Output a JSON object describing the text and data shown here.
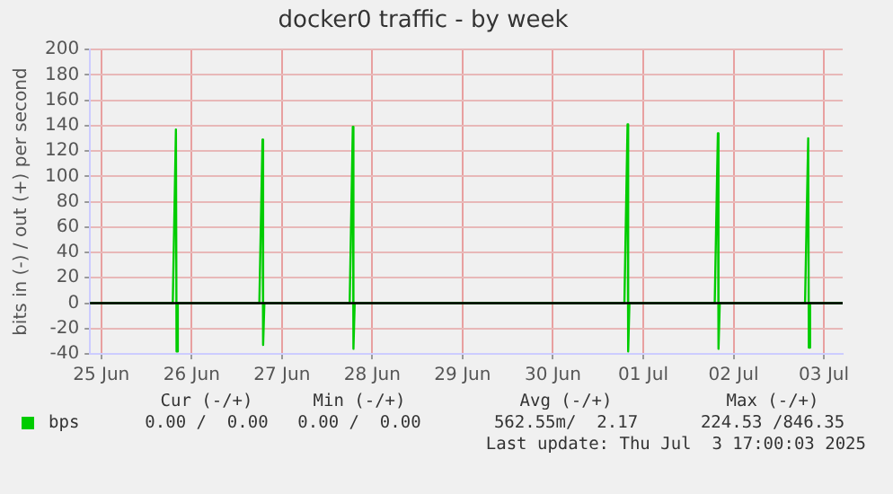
{
  "chart_data": {
    "type": "line",
    "title": "docker0 traffic - by week",
    "ylabel": "bits in (-) / out (+) per second",
    "x": [
      "2025-06-24T21:00",
      "2025-06-25T19:00",
      "2025-06-25T19:50",
      "2025-06-25T20:00",
      "2025-06-25T20:20",
      "2025-06-25T21:00",
      "2025-06-26T18:00",
      "2025-06-26T18:50",
      "2025-06-26T19:00",
      "2025-06-26T19:20",
      "2025-06-26T20:00",
      "2025-06-27T18:00",
      "2025-06-27T18:50",
      "2025-06-27T19:00",
      "2025-06-27T19:20",
      "2025-06-27T20:00",
      "2025-06-30T19:00",
      "2025-06-30T19:50",
      "2025-06-30T20:00",
      "2025-06-30T20:20",
      "2025-06-30T21:00",
      "2025-07-01T19:00",
      "2025-07-01T19:50",
      "2025-07-01T20:00",
      "2025-07-01T20:20",
      "2025-07-01T21:00",
      "2025-07-02T19:00",
      "2025-07-02T19:50",
      "2025-07-02T20:00",
      "2025-07-02T20:20",
      "2025-07-02T21:00",
      "2025-07-03T05:00"
    ],
    "series": [
      {
        "name": "bps",
        "color": "#00cc00",
        "values": [
          0,
          0,
          137,
          -38,
          0,
          0,
          0,
          129,
          -33,
          0,
          0,
          0,
          139,
          -36,
          0,
          0,
          0,
          141,
          -38,
          0,
          0,
          0,
          134,
          -36,
          0,
          0,
          0,
          130,
          -35,
          0,
          0,
          0
        ]
      }
    ],
    "xlim": [
      "2025-06-24T21:00",
      "2025-07-03T05:00"
    ],
    "xticks": [
      {
        "value": "2025-06-25",
        "label": "25 Jun"
      },
      {
        "value": "2025-06-26",
        "label": "26 Jun"
      },
      {
        "value": "2025-06-27",
        "label": "27 Jun"
      },
      {
        "value": "2025-06-28",
        "label": "28 Jun"
      },
      {
        "value": "2025-06-29",
        "label": "29 Jun"
      },
      {
        "value": "2025-06-30",
        "label": "30 Jun"
      },
      {
        "value": "2025-07-01",
        "label": "01 Jul"
      },
      {
        "value": "2025-07-02",
        "label": "02 Jul"
      },
      {
        "value": "2025-07-03",
        "label": "03 Jul"
      }
    ],
    "ylim": [
      -40,
      200
    ],
    "yticks": [
      -40,
      -20,
      0,
      20,
      40,
      60,
      80,
      100,
      120,
      140,
      160,
      180,
      200
    ],
    "grid": true,
    "legend": "bottom",
    "marker": "none",
    "line_style": "solid",
    "ref_lines": [
      {
        "axis": "y",
        "value": 0,
        "color": "#000000"
      }
    ],
    "annotations": [
      "Cur (-/+)",
      "Min (-/+)",
      "Avg (-/+)",
      "Max (-/+)",
      "0.00 /  0.00",
      "0.00 /  0.00",
      "562.55m/  2.17",
      "224.53 /846.35",
      "Last update: Thu Jul  3 17:00:03 2025"
    ]
  }
}
